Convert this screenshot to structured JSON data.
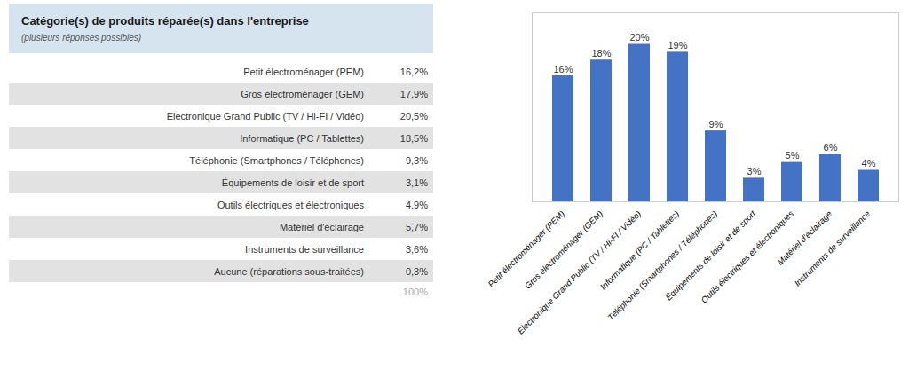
{
  "chart_data": [
    {
      "type": "table",
      "title": "Catégorie(s) de produits réparée(s) dans l'entreprise",
      "subtitle": "(plusieurs réponses possibles)",
      "categories": [
        "Petit électroménager (PEM)",
        "Gros électroménager (GEM)",
        "Electronique Grand Public (TV / Hi-FI / Vidéo)",
        "Informatique (PC / Tablettes)",
        "Téléphonie (Smartphones / Téléphones)",
        "Équipements de loisir et de sport",
        "Outils électriques et électroniques",
        "Matériel d'éclairage",
        "Instruments de surveillance",
        "Aucune (réparations sous-traitées)"
      ],
      "values": [
        16.2,
        17.9,
        20.5,
        18.5,
        9.3,
        3.1,
        4.9,
        5.7,
        3.6,
        0.3
      ],
      "value_labels": [
        "16,2%",
        "17,9%",
        "20,5%",
        "18,5%",
        "9,3%",
        "3,1%",
        "4,9%",
        "5,7%",
        "3,6%",
        "0,3%"
      ],
      "annotations": [
        "100%"
      ]
    },
    {
      "type": "bar",
      "categories": [
        "Petit électroménager (PEM)",
        "Gros électroménager (GEM)",
        "Electronique Grand Public (TV / Hi-FI / Vidéo)",
        "Informatique (PC / Tablettes)",
        "Téléphonie (Smartphones / Téléphones)",
        "Équipements de loisir et de sport",
        "Outils électriques et électroniques",
        "Matériel d'éclairage",
        "Instruments de surveillance"
      ],
      "values": [
        16,
        18,
        20,
        19,
        9,
        3,
        5,
        6,
        4
      ],
      "value_labels": [
        "16%",
        "18%",
        "20%",
        "19%",
        "9%",
        "3%",
        "5%",
        "6%",
        "4%"
      ],
      "data_labels": true,
      "color": "#4472C4",
      "ylim": [
        0,
        24
      ],
      "tick_labels": "x"
    }
  ]
}
